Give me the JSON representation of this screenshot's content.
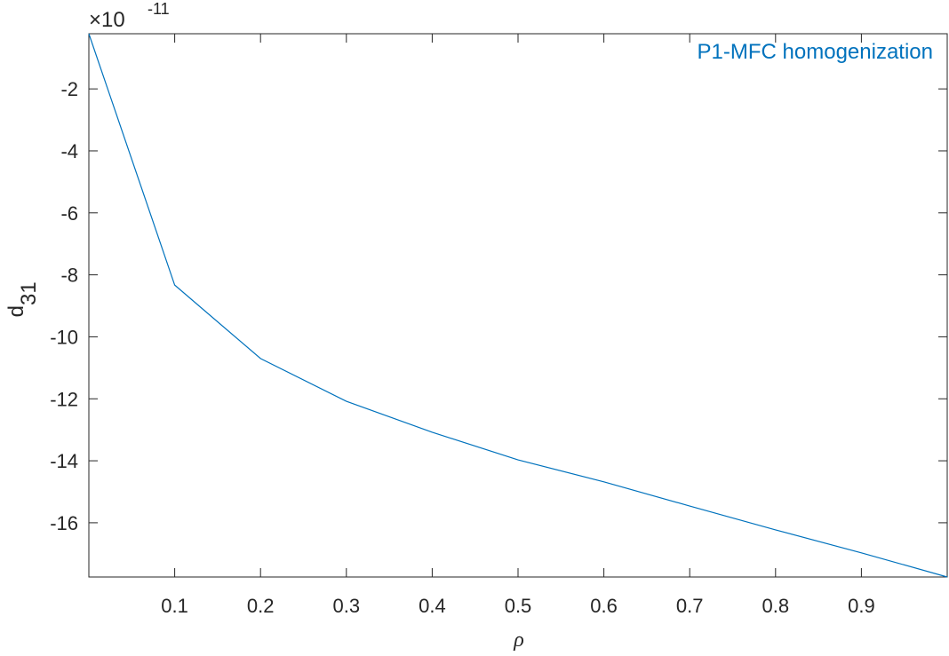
{
  "chart_data": {
    "type": "line",
    "annotation": "P1-MFC homogenization",
    "xlabel": "ρ",
    "ylabel": "d",
    "ylabel_subscript": "31",
    "y_multiplier": "×10",
    "y_exponent": "-11",
    "x": [
      0,
      0.1,
      0.2,
      0.3,
      0.4,
      0.5,
      0.6,
      0.7,
      0.8,
      0.9,
      1.0
    ],
    "series": [
      {
        "name": "P1-MFC homogenization",
        "color": "#0072bd",
        "values": [
          -0.22,
          -8.33,
          -10.7,
          -12.08,
          -13.08,
          -13.97,
          -14.68,
          -15.46,
          -16.23,
          -16.97,
          -17.75
        ]
      }
    ],
    "xlim": [
      0,
      1
    ],
    "ylim": [
      -17.75,
      -0.22
    ],
    "xticks": [
      0.1,
      0.2,
      0.3,
      0.4,
      0.5,
      0.6,
      0.7,
      0.8,
      0.9
    ],
    "yticks": [
      -16,
      -14,
      -12,
      -10,
      -8,
      -6,
      -4,
      -2
    ],
    "grid": false
  }
}
